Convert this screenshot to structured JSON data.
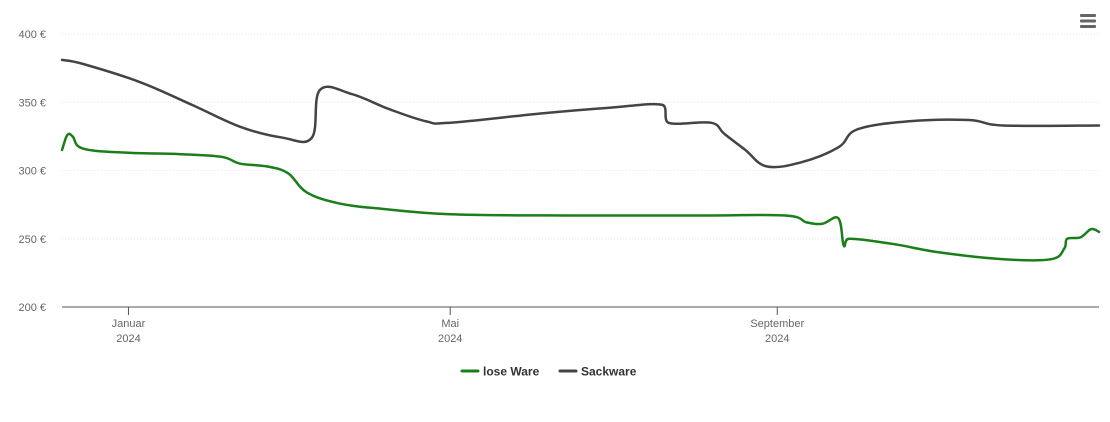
{
  "chart_data": {
    "type": "line",
    "title": "",
    "xlabel": "",
    "ylabel": "",
    "ylim": [
      200,
      400
    ],
    "yticks": [
      200,
      250,
      300,
      350,
      400
    ],
    "ytick_labels": [
      "200 €",
      "250 €",
      "300 €",
      "350 €",
      "400 €"
    ],
    "xlim": [
      "2023-12-07",
      "2024-12-31"
    ],
    "xticks": [
      {
        "date": "2024-01-01",
        "label": "Januar",
        "year": "2024"
      },
      {
        "date": "2024-05-01",
        "label": "Mai",
        "year": "2024"
      },
      {
        "date": "2024-09-01",
        "label": "September",
        "year": "2024"
      }
    ],
    "grid": true,
    "legend_position": "bottom-center",
    "series": [
      {
        "name": "lose Ware",
        "color": "#1a7f1a",
        "points": [
          [
            "2023-12-07",
            315
          ],
          [
            "2023-12-09",
            326
          ],
          [
            "2023-12-11",
            325
          ],
          [
            "2023-12-15",
            316
          ],
          [
            "2024-01-01",
            313
          ],
          [
            "2024-01-20",
            312
          ],
          [
            "2024-02-05",
            310
          ],
          [
            "2024-02-12",
            305
          ],
          [
            "2024-02-22",
            303
          ],
          [
            "2024-03-01",
            298
          ],
          [
            "2024-03-08",
            284
          ],
          [
            "2024-03-20",
            276
          ],
          [
            "2024-04-05",
            272
          ],
          [
            "2024-05-01",
            268
          ],
          [
            "2024-06-15",
            267
          ],
          [
            "2024-08-01",
            267
          ],
          [
            "2024-09-04",
            267
          ],
          [
            "2024-09-12",
            262
          ],
          [
            "2024-09-18",
            261
          ],
          [
            "2024-09-24",
            265
          ],
          [
            "2024-09-26",
            245
          ],
          [
            "2024-09-28",
            250
          ],
          [
            "2024-10-15",
            246
          ],
          [
            "2024-11-01",
            240
          ],
          [
            "2024-11-25",
            235
          ],
          [
            "2024-12-13",
            235
          ],
          [
            "2024-12-18",
            243
          ],
          [
            "2024-12-19",
            250
          ],
          [
            "2024-12-24",
            251
          ],
          [
            "2024-12-28",
            257
          ],
          [
            "2024-12-31",
            255
          ]
        ]
      },
      {
        "name": "Sackware",
        "color": "#444444",
        "points": [
          [
            "2023-12-07",
            381
          ],
          [
            "2023-12-15",
            378
          ],
          [
            "2024-01-05",
            365
          ],
          [
            "2024-01-25",
            348
          ],
          [
            "2024-02-12",
            332
          ],
          [
            "2024-02-28",
            324
          ],
          [
            "2024-03-10",
            324
          ],
          [
            "2024-03-13",
            359
          ],
          [
            "2024-03-25",
            356
          ],
          [
            "2024-04-08",
            345
          ],
          [
            "2024-04-22",
            336
          ],
          [
            "2024-05-01",
            335
          ],
          [
            "2024-06-05",
            342
          ],
          [
            "2024-06-30",
            346
          ],
          [
            "2024-07-20",
            348
          ],
          [
            "2024-07-22",
            335
          ],
          [
            "2024-08-07",
            335
          ],
          [
            "2024-08-12",
            327
          ],
          [
            "2024-08-20",
            315
          ],
          [
            "2024-08-28",
            303
          ],
          [
            "2024-09-10",
            306
          ],
          [
            "2024-09-24",
            317
          ],
          [
            "2024-10-01",
            330
          ],
          [
            "2024-10-20",
            336
          ],
          [
            "2024-11-12",
            337
          ],
          [
            "2024-11-25",
            333
          ],
          [
            "2024-12-31",
            333
          ]
        ]
      }
    ]
  }
}
